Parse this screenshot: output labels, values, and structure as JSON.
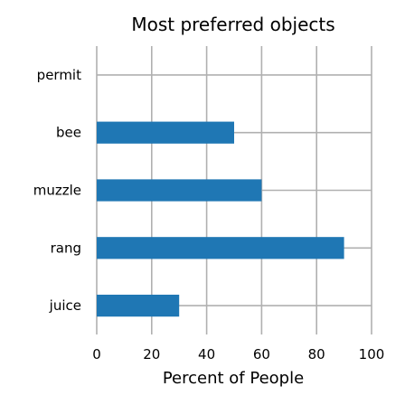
{
  "chart_data": {
    "type": "bar",
    "orientation": "horizontal",
    "title": "Most preferred objects",
    "xlabel": "Percent of People",
    "ylabel": "",
    "categories": [
      "permit",
      "bee",
      "muzzle",
      "rang",
      "juice"
    ],
    "values": [
      0,
      50,
      60,
      90,
      30
    ],
    "xlim": [
      0,
      100
    ],
    "xticks": [
      0,
      20,
      40,
      60,
      80,
      100
    ],
    "grid": true,
    "bar_color": "#1f77b4"
  }
}
